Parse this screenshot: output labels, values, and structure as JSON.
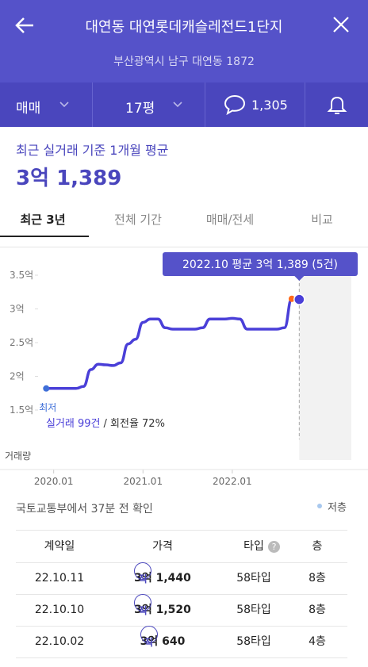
{
  "header": {
    "title": "대연동 대연롯데캐슬레전드1단지",
    "address": "부산광역시 남구 대연동 1872"
  },
  "filters": {
    "deal": "매매",
    "size": "17평",
    "comments": "1,305"
  },
  "summary": {
    "label": "최근 실거래 기준 1개월 평균",
    "value": "3억 1,389"
  },
  "tabs": [
    "최근 3년",
    "전체 기간",
    "매매/전세",
    "비교"
  ],
  "chart_data": {
    "type": "line",
    "tooltip": "2022.10 평균 3억 1,389 (5건)",
    "low_label": "최저",
    "deals_label": "실거래 99건",
    "rate_label": "/ 회전율 72%",
    "volume_label": "거래량",
    "color": "#4a3fd8",
    "x": [
      "2019.12",
      "2020.01",
      "2020.02",
      "2020.03",
      "2020.04",
      "2020.05",
      "2020.06",
      "2020.07",
      "2020.08",
      "2020.09",
      "2020.10",
      "2020.11",
      "2020.12",
      "2021.01",
      "2021.02",
      "2021.03",
      "2021.04",
      "2021.05",
      "2021.06",
      "2021.07",
      "2021.08",
      "2021.09",
      "2021.10",
      "2021.11",
      "2021.12",
      "2022.01",
      "2022.02",
      "2022.03",
      "2022.04",
      "2022.05",
      "2022.06",
      "2022.07",
      "2022.08",
      "2022.09",
      "2022.10"
    ],
    "values": [
      1.82,
      1.82,
      1.82,
      1.82,
      1.82,
      1.85,
      2.1,
      2.18,
      2.17,
      2.16,
      2.2,
      2.48,
      2.55,
      2.8,
      2.85,
      2.85,
      2.72,
      2.7,
      2.7,
      2.7,
      2.7,
      2.72,
      2.85,
      2.85,
      2.85,
      2.86,
      2.85,
      2.7,
      2.7,
      2.7,
      2.7,
      2.7,
      2.72,
      3.15,
      3.14
    ],
    "xlim": [
      "2019.06",
      "2023.05"
    ],
    "xticks": [
      "2020.01",
      "2021.01",
      "2022.01"
    ],
    "ylim": [
      1.5,
      3.5
    ],
    "yticks": [
      {
        "value": 1.5,
        "label": "1.5억"
      },
      {
        "value": 2,
        "label": "2억"
      },
      {
        "value": 2.5,
        "label": "2.5억"
      },
      {
        "value": 3,
        "label": "3억"
      },
      {
        "value": 3.5,
        "label": "3.5억"
      }
    ],
    "grid": false
  },
  "source": "국토교통부에서 37분 전 확인",
  "legend": "저층",
  "table": {
    "headers": [
      "계약일",
      "가격",
      "타입",
      "층"
    ],
    "rows": [
      [
        "22.10.11",
        "직",
        "3억 1,440",
        "58타입",
        "8층"
      ],
      [
        "22.10.10",
        "직",
        "3억 1,520",
        "58타입",
        "8층"
      ],
      [
        "22.10.02",
        "직",
        "3억 640",
        "58타입",
        "4층"
      ]
    ]
  }
}
